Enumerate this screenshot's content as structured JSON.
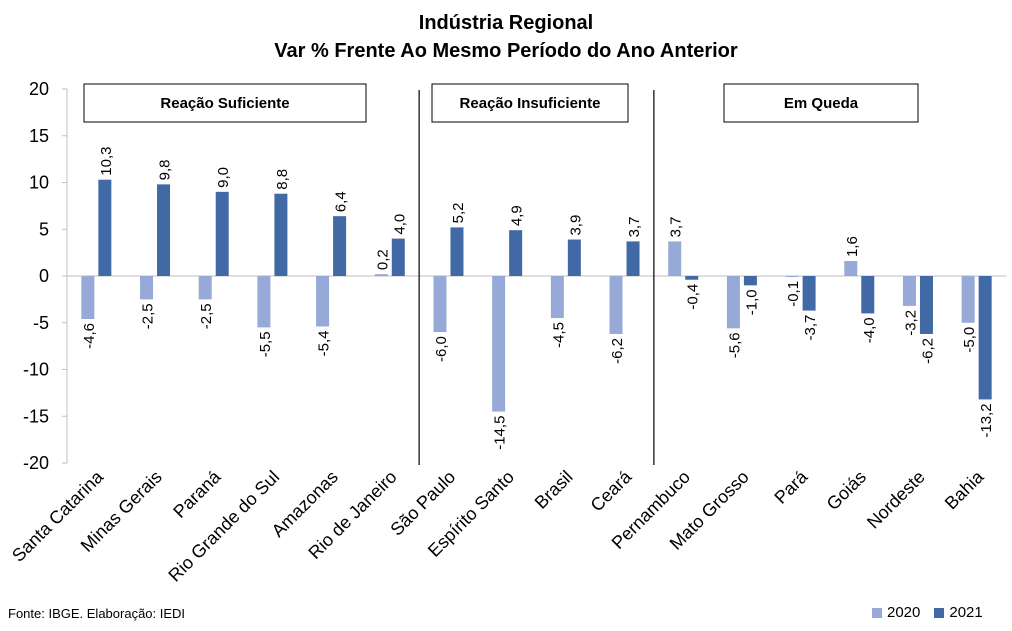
{
  "title": "Indústria Regional",
  "subtitle": "Var % Frente Ao Mesmo Período do Ano Anterior",
  "footer": "Fonte: IBGE. Elaboração: IEDI",
  "groups": [
    "Reação Suficiente",
    "Reação Insuficiente",
    "Em Queda"
  ],
  "colors": {
    "s2020": "#97a9d7",
    "s2021": "#4169a5"
  },
  "chart_data": {
    "type": "bar",
    "title": "Indústria Regional",
    "subtitle": "Var % Frente Ao Mesmo Período do Ano Anterior",
    "categories": [
      "Santa Catarina",
      "Minas Gerais",
      "Paraná",
      "Rio Grande do Sul",
      "Amazonas",
      "Rio de Janeiro",
      "São Paulo",
      "Espírito Santo",
      "Brasil",
      "Ceará",
      "Pernambuco",
      "Mato Grosso",
      "Pará",
      "Goiás",
      "Nordeste",
      "Bahia"
    ],
    "series": [
      {
        "name": "2020",
        "values": [
          -4.6,
          -2.5,
          -2.5,
          -5.5,
          -5.4,
          0.2,
          -6.0,
          -14.5,
          -4.5,
          -6.2,
          3.7,
          -5.6,
          -0.1,
          1.6,
          -3.2,
          -5.0
        ]
      },
      {
        "name": "2021",
        "values": [
          10.3,
          9.8,
          9.0,
          8.8,
          6.4,
          4.0,
          5.2,
          4.9,
          3.9,
          3.7,
          -0.4,
          -1.0,
          -3.7,
          -4.0,
          -6.2,
          -13.2
        ]
      }
    ],
    "data_labels": {
      "2020": [
        "-4,6",
        "-2,5",
        "-2,5",
        "-5,5",
        "-5,4",
        "0,2",
        "-6,0",
        "-14,5",
        "-4,5",
        "-6,2",
        "3,7",
        "-5,6",
        "-0,1",
        "1,6",
        "-3,2",
        "-5,0"
      ],
      "2021": [
        "10,3",
        "9,8",
        "9,0",
        "8,8",
        "6,4",
        "4,0",
        "5,2",
        "4,9",
        "3,9",
        "3,7",
        "-0,4",
        "-1,0",
        "-3,7",
        "-4,0",
        "-6,2",
        "-13,2"
      ]
    },
    "yticks": [
      "20",
      "15",
      "10",
      "5",
      "0",
      "-5",
      "-10",
      "-15",
      "-20"
    ],
    "ylim": [
      -20,
      20
    ],
    "legend": "bottom-right",
    "grid": false
  }
}
